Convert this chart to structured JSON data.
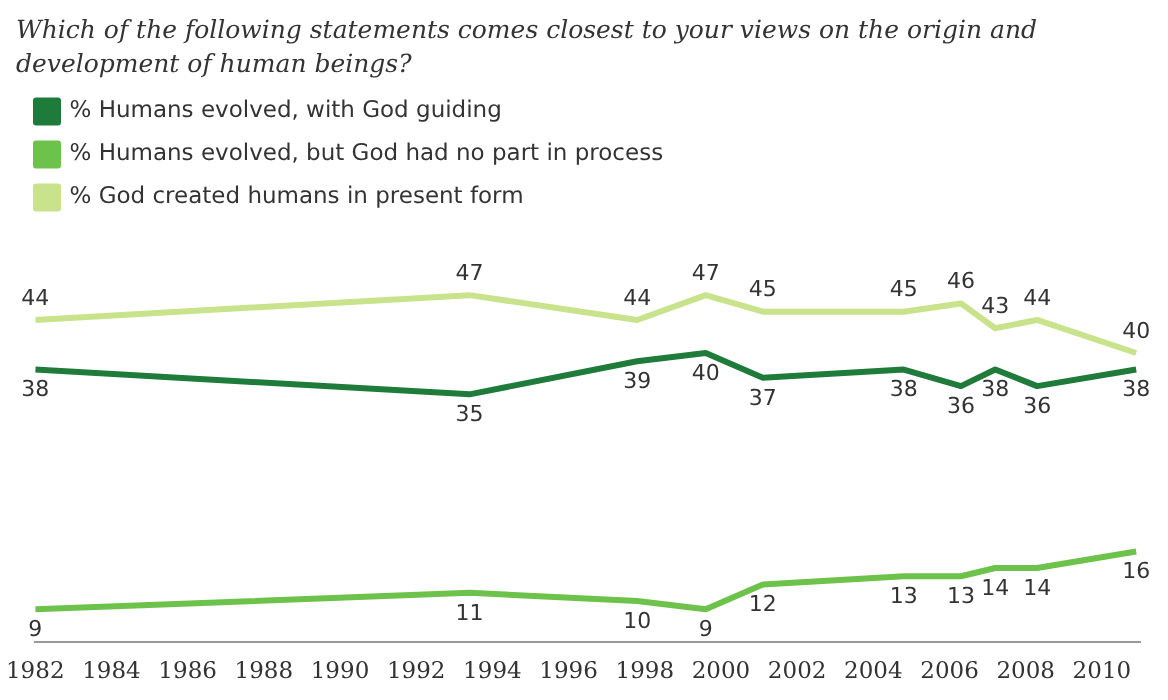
{
  "chart_data": {
    "type": "line",
    "title": "Which of the following statements comes closest to your views on the origin and development of human beings?",
    "x": [
      1982,
      1993.4,
      1997.8,
      1999.6,
      2001.1,
      2004.8,
      2006.3,
      2007.2,
      2008.3,
      2010.9
    ],
    "xlim": [
      1982,
      2011
    ],
    "xticks": [
      1982,
      1984,
      1986,
      1988,
      1990,
      1992,
      1994,
      1996,
      1998,
      2000,
      2002,
      2004,
      2006,
      2008,
      2010
    ],
    "series": [
      {
        "name": "% Humans evolved, with God guiding",
        "color": "#1e7b3a",
        "values": [
          38,
          35,
          39,
          40,
          37,
          38,
          36,
          38,
          36,
          38
        ]
      },
      {
        "name": "% Humans evolved, but God had no part in process",
        "color": "#6cc24a",
        "values": [
          9,
          11,
          10,
          9,
          12,
          13,
          13,
          14,
          14,
          16
        ]
      },
      {
        "name": "% God created humans in present form",
        "color": "#c8e38c",
        "values": [
          44,
          47,
          44,
          47,
          45,
          45,
          46,
          43,
          44,
          40
        ]
      }
    ],
    "data_labels": true,
    "legend": "top left",
    "grid": false,
    "marker": "none",
    "line_style": "solid",
    "tick_labels": "x"
  }
}
